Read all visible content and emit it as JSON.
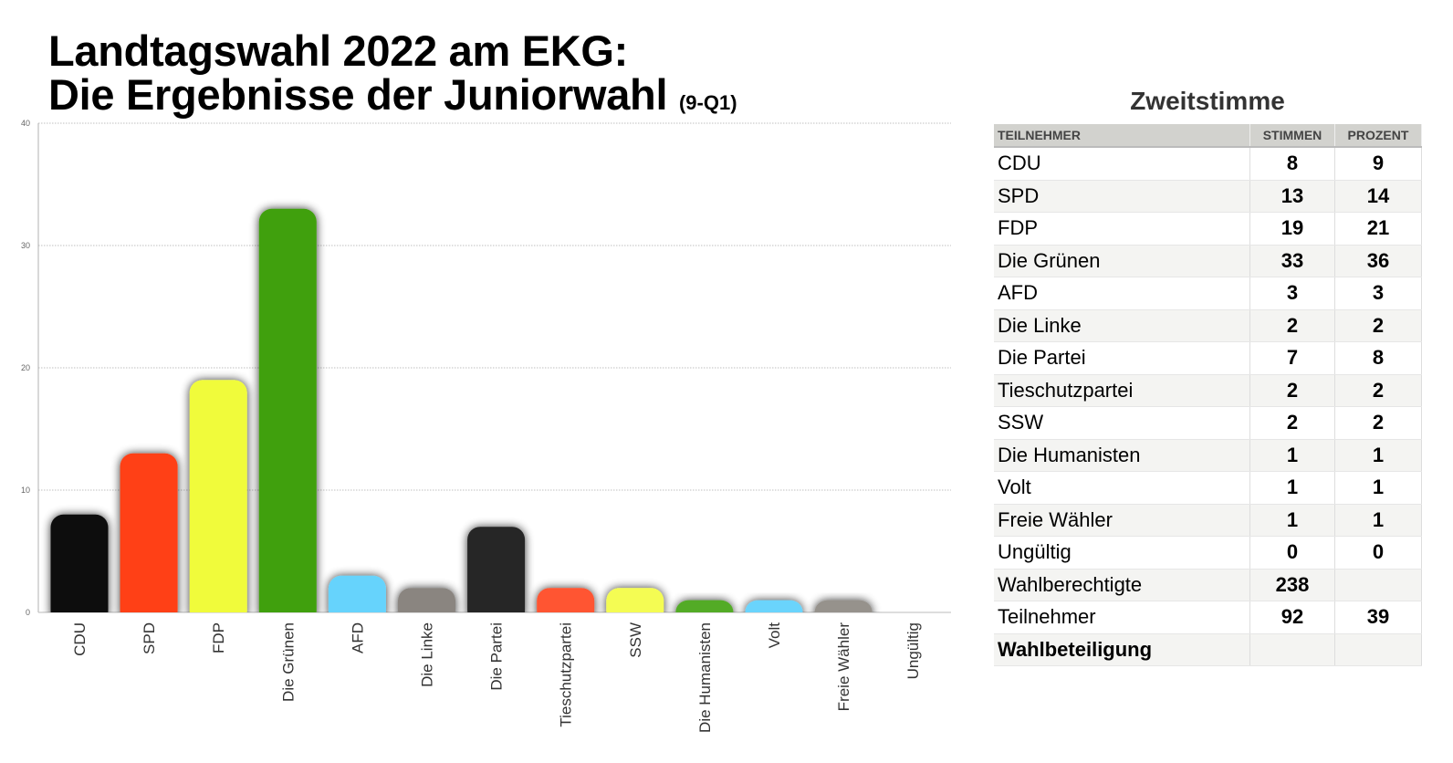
{
  "title": {
    "line1": "Landtagswahl 2022 am EKG:",
    "line2": "Die Ergebnisse der Juniorwahl",
    "suffix": "(9-Q1)"
  },
  "chart_data": {
    "type": "bar",
    "categories": [
      "CDU",
      "SPD",
      "FDP",
      "Die Grünen",
      "AFD",
      "Die Linke",
      "Die Partei",
      "Tieschutzpartei",
      "SSW",
      "Die Humanisten",
      "Volt",
      "Freie Wähler",
      "Ungültig"
    ],
    "values": [
      8,
      13,
      19,
      33,
      3,
      2,
      7,
      2,
      2,
      1,
      1,
      1,
      0
    ],
    "colors": [
      "#080808",
      "#ff4015",
      "#f0fb3b",
      "#40a010",
      "#66d3fc",
      "#8a8580",
      "#262626",
      "#ff5533",
      "#f4fc52",
      "#52ab28",
      "#6ad4fc",
      "#96928c",
      "#cccccc"
    ],
    "ylim": [
      0,
      40
    ],
    "yticks": [
      0,
      10,
      20,
      30,
      40
    ],
    "grid": true
  },
  "table": {
    "title": "Zweitstimme",
    "headers": [
      "TEILNEHMER",
      "STIMMEN",
      "PROZENT"
    ],
    "rows": [
      [
        "CDU",
        "8",
        "9"
      ],
      [
        "SPD",
        "13",
        "14"
      ],
      [
        "FDP",
        "19",
        "21"
      ],
      [
        "Die Grünen",
        "33",
        "36"
      ],
      [
        "AFD",
        "3",
        "3"
      ],
      [
        "Die Linke",
        "2",
        "2"
      ],
      [
        "Die Partei",
        "7",
        "8"
      ],
      [
        "Tieschutzpartei",
        "2",
        "2"
      ],
      [
        "SSW",
        "2",
        "2"
      ],
      [
        "Die Humanisten",
        "1",
        "1"
      ],
      [
        "Volt",
        "1",
        "1"
      ],
      [
        "Freie Wähler",
        "1",
        "1"
      ],
      [
        "Ungültig",
        "0",
        "0"
      ],
      [
        "Wahlberechtigte",
        "238",
        ""
      ],
      [
        "Teilnehmer",
        "92",
        "39"
      ],
      [
        "Wahlbeteiligung",
        "",
        ""
      ]
    ]
  }
}
